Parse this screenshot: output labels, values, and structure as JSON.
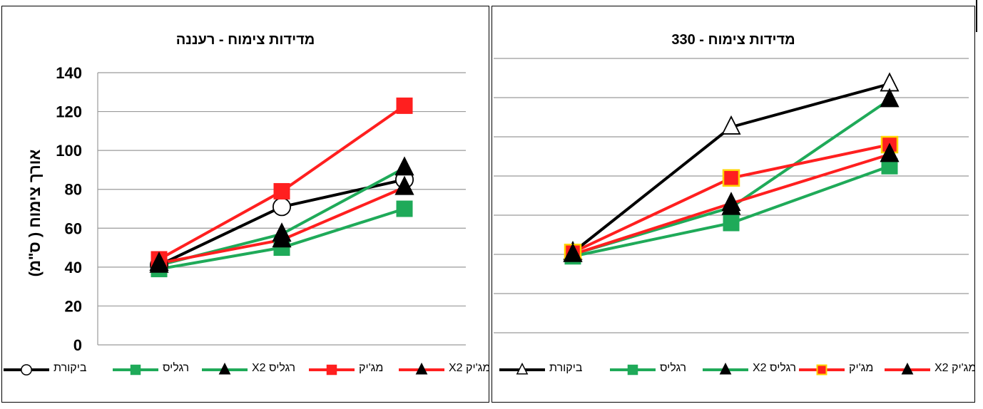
{
  "chart_data": [
    {
      "type": "line",
      "title": "מדידות צימוח - רעננה",
      "ylabel": "אורך צימוח ( ס\"מ)",
      "ylim": [
        0,
        140
      ],
      "yticks": [
        0,
        20,
        40,
        60,
        80,
        100,
        120,
        140
      ],
      "grid": true,
      "show_y_ticks": true,
      "legend_position": "bottom",
      "series": [
        {
          "name": "ביקורת",
          "color": "#000000",
          "marker": "circle",
          "marker_fill": "#ffffff",
          "values": [
            41,
            71,
            85
          ]
        },
        {
          "name": "רגליס",
          "color": "#1faa59",
          "marker": "square",
          "marker_fill": "#1faa59",
          "values": [
            39,
            50,
            70
          ]
        },
        {
          "name": "רגליס X2",
          "color": "#1faa59",
          "marker": "triangle",
          "marker_fill": "#000000",
          "values": [
            41,
            57,
            91
          ]
        },
        {
          "name": "מג'יק",
          "color": "#ff1f1f",
          "marker": "square",
          "marker_fill": "#ff1f1f",
          "values": [
            44,
            79,
            123
          ]
        },
        {
          "name": "מג'יק X2",
          "color": "#ff1f1f",
          "marker": "triangle",
          "marker_fill": "#000000",
          "values": [
            42,
            54,
            81
          ]
        }
      ]
    },
    {
      "type": "line",
      "title": "מדידות צימוח - 330",
      "ylim": [
        0,
        140
      ],
      "grid": true,
      "show_y_ticks": false,
      "legend_position": "bottom",
      "series": [
        {
          "name": "ביקורת",
          "color": "#000000",
          "marker": "triangle",
          "marker_fill": "#ffffff",
          "values": [
            41,
            105,
            127
          ]
        },
        {
          "name": "רגליס",
          "color": "#1faa59",
          "marker": "square",
          "marker_fill": "#1faa59",
          "values": [
            39,
            56,
            85
          ]
        },
        {
          "name": "רגליס X2",
          "color": "#1faa59",
          "marker": "triangle",
          "marker_fill": "#000000",
          "values": [
            40,
            64,
            119
          ]
        },
        {
          "name": "מג'יק",
          "color": "#ff1f1f",
          "marker": "square",
          "marker_fill": "#ff1f1f",
          "marker_edge": "#ffd400",
          "values": [
            41,
            79,
            96
          ]
        },
        {
          "name": "מג'יק X2",
          "color": "#ff1f1f",
          "marker": "triangle",
          "marker_fill": "#000000",
          "values": [
            40,
            66,
            91
          ]
        }
      ]
    }
  ]
}
